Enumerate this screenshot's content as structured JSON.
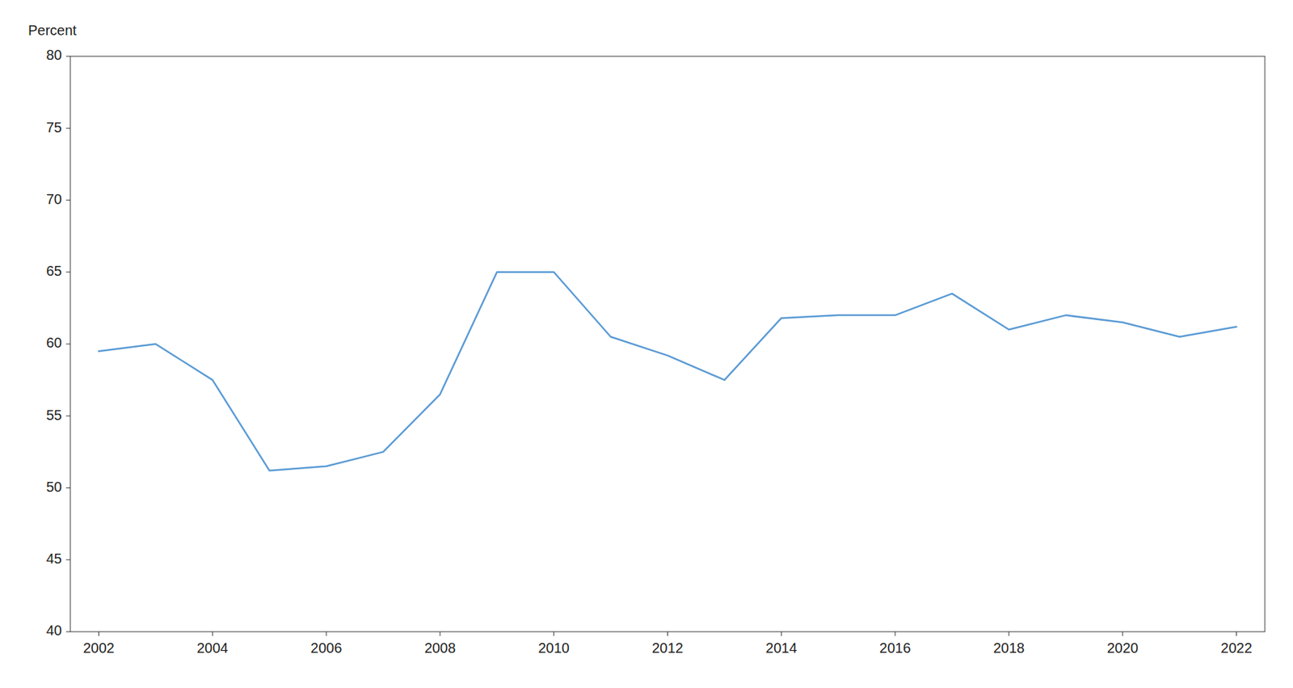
{
  "chart_data": {
    "type": "line",
    "ylabel": "Percent",
    "x": [
      2002,
      2003,
      2004,
      2005,
      2006,
      2007,
      2008,
      2009,
      2010,
      2011,
      2012,
      2013,
      2014,
      2015,
      2016,
      2017,
      2018,
      2019,
      2020,
      2021,
      2022
    ],
    "values": [
      59.5,
      60.0,
      57.5,
      51.2,
      51.5,
      52.5,
      56.5,
      65.0,
      65.0,
      60.5,
      59.2,
      57.5,
      61.8,
      62.0,
      62.0,
      63.5,
      61.0,
      62.0,
      61.5,
      60.5,
      61.2
    ],
    "color": "#5B9BD5",
    "xlim": [
      2001.5,
      2022.5
    ],
    "ylim": [
      40,
      80
    ],
    "xticks": [
      2002,
      2004,
      2006,
      2008,
      2010,
      2012,
      2014,
      2016,
      2018,
      2020,
      2022
    ],
    "yticks": [
      40,
      45,
      50,
      55,
      60,
      65,
      70,
      75,
      80
    ],
    "grid": false
  }
}
